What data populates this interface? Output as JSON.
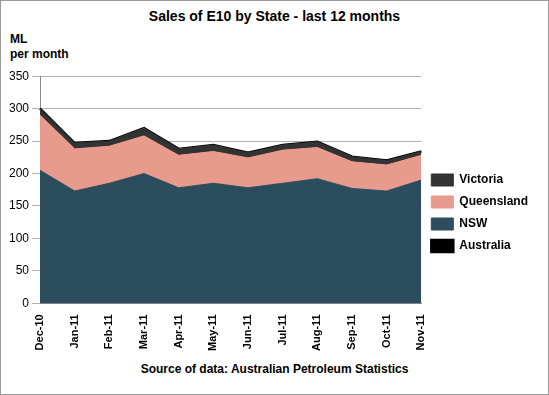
{
  "chart_data": {
    "type": "area",
    "title": "Sales of E10 by State - last 12 months",
    "y_label": "ML per month",
    "source": "Source of data: Australian Petroleum Statistics",
    "categories": [
      "Dec-10",
      "Jan-11",
      "Feb-11",
      "Mar-11",
      "Apr-11",
      "May-11",
      "Jun-11",
      "Jul-11",
      "Aug-11",
      "Sep-11",
      "Oct-11",
      "Nov-11"
    ],
    "series": [
      {
        "name": "NSW",
        "type": "area",
        "color": "#2b4d5e",
        "values": [
          205,
          173,
          185,
          200,
          178,
          185,
          178,
          185,
          192,
          177,
          173,
          190
        ]
      },
      {
        "name": "Queensland",
        "type": "area",
        "color": "#e89a8c",
        "values": [
          85,
          65,
          57,
          58,
          50,
          49,
          46,
          51,
          48,
          41,
          40,
          38
        ]
      },
      {
        "name": "Victoria",
        "type": "area",
        "color": "#333333",
        "values": [
          10,
          9,
          8,
          12,
          10,
          10,
          8,
          8,
          9,
          8,
          7,
          6
        ]
      },
      {
        "name": "Australia",
        "type": "line",
        "color": "#000000",
        "values": [
          300,
          247,
          250,
          270,
          238,
          244,
          232,
          244,
          249,
          226,
          220,
          234
        ]
      }
    ],
    "stacked": true,
    "ylim": [
      0,
      350
    ],
    "yticks": [
      0,
      50,
      100,
      150,
      200,
      250,
      300,
      350
    ],
    "grid": true,
    "legend": "right"
  }
}
